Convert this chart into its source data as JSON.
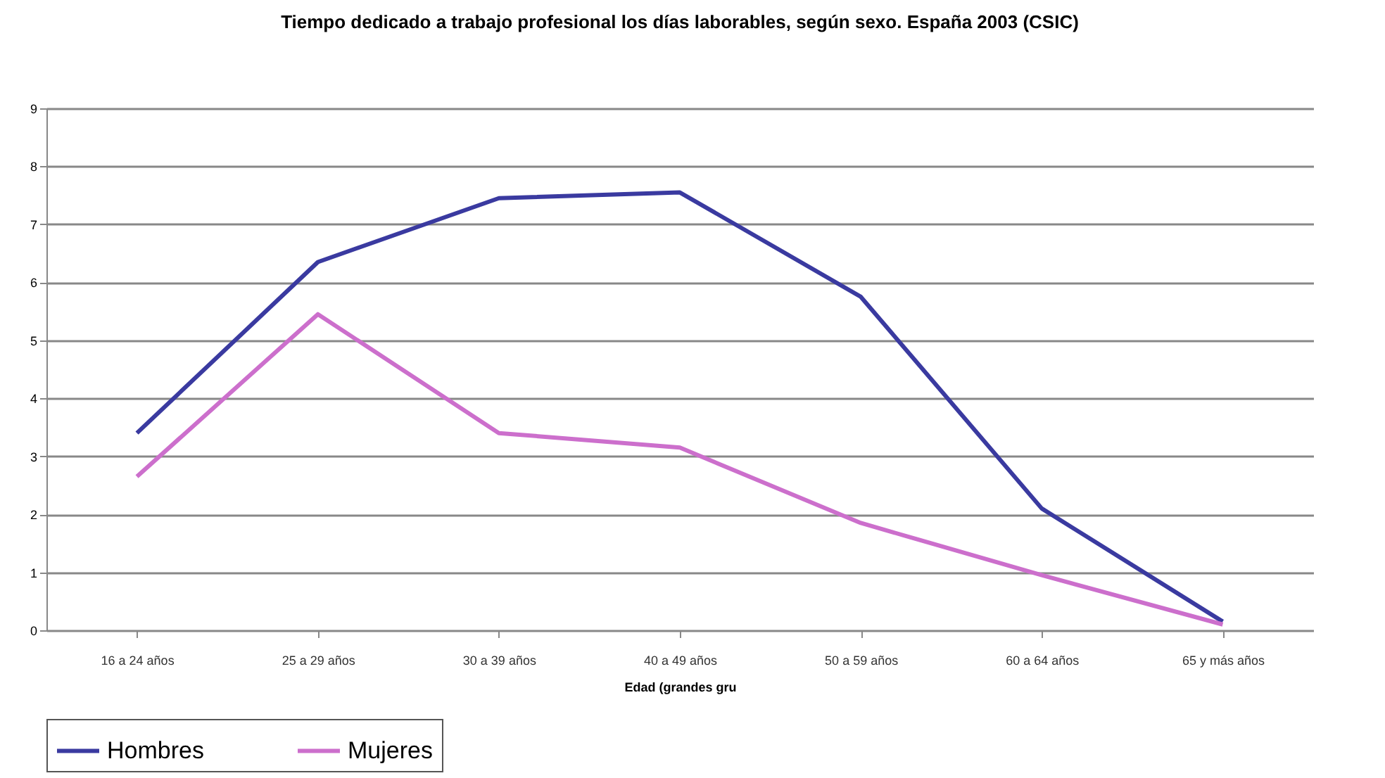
{
  "chart_data": {
    "type": "line",
    "title": "Tiempo dedicado a trabajo profesional los días laborables, según sexo. España 2003 (CSIC)",
    "xlabel": "Edad (grandes gru",
    "categories": [
      "16 a 24 años",
      "25 a 29 años",
      "30 a 39 años",
      "40 a 49 años",
      "50 a 59 años",
      "60 a 64 años",
      "65 y más años"
    ],
    "series": [
      {
        "name": "Hombres",
        "color": "#3a3aa0",
        "values": [
          3.4,
          6.35,
          7.45,
          7.55,
          5.75,
          2.1,
          0.15
        ]
      },
      {
        "name": "Mujeres",
        "color": "#cc6fcc",
        "values": [
          2.65,
          5.45,
          3.4,
          3.15,
          1.85,
          0.95,
          0.1
        ]
      }
    ],
    "ylim": [
      0,
      9
    ],
    "yticks": [
      0,
      1,
      2,
      3,
      4,
      5,
      6,
      7,
      8,
      9
    ],
    "grid": "y",
    "legend": "bottom"
  }
}
